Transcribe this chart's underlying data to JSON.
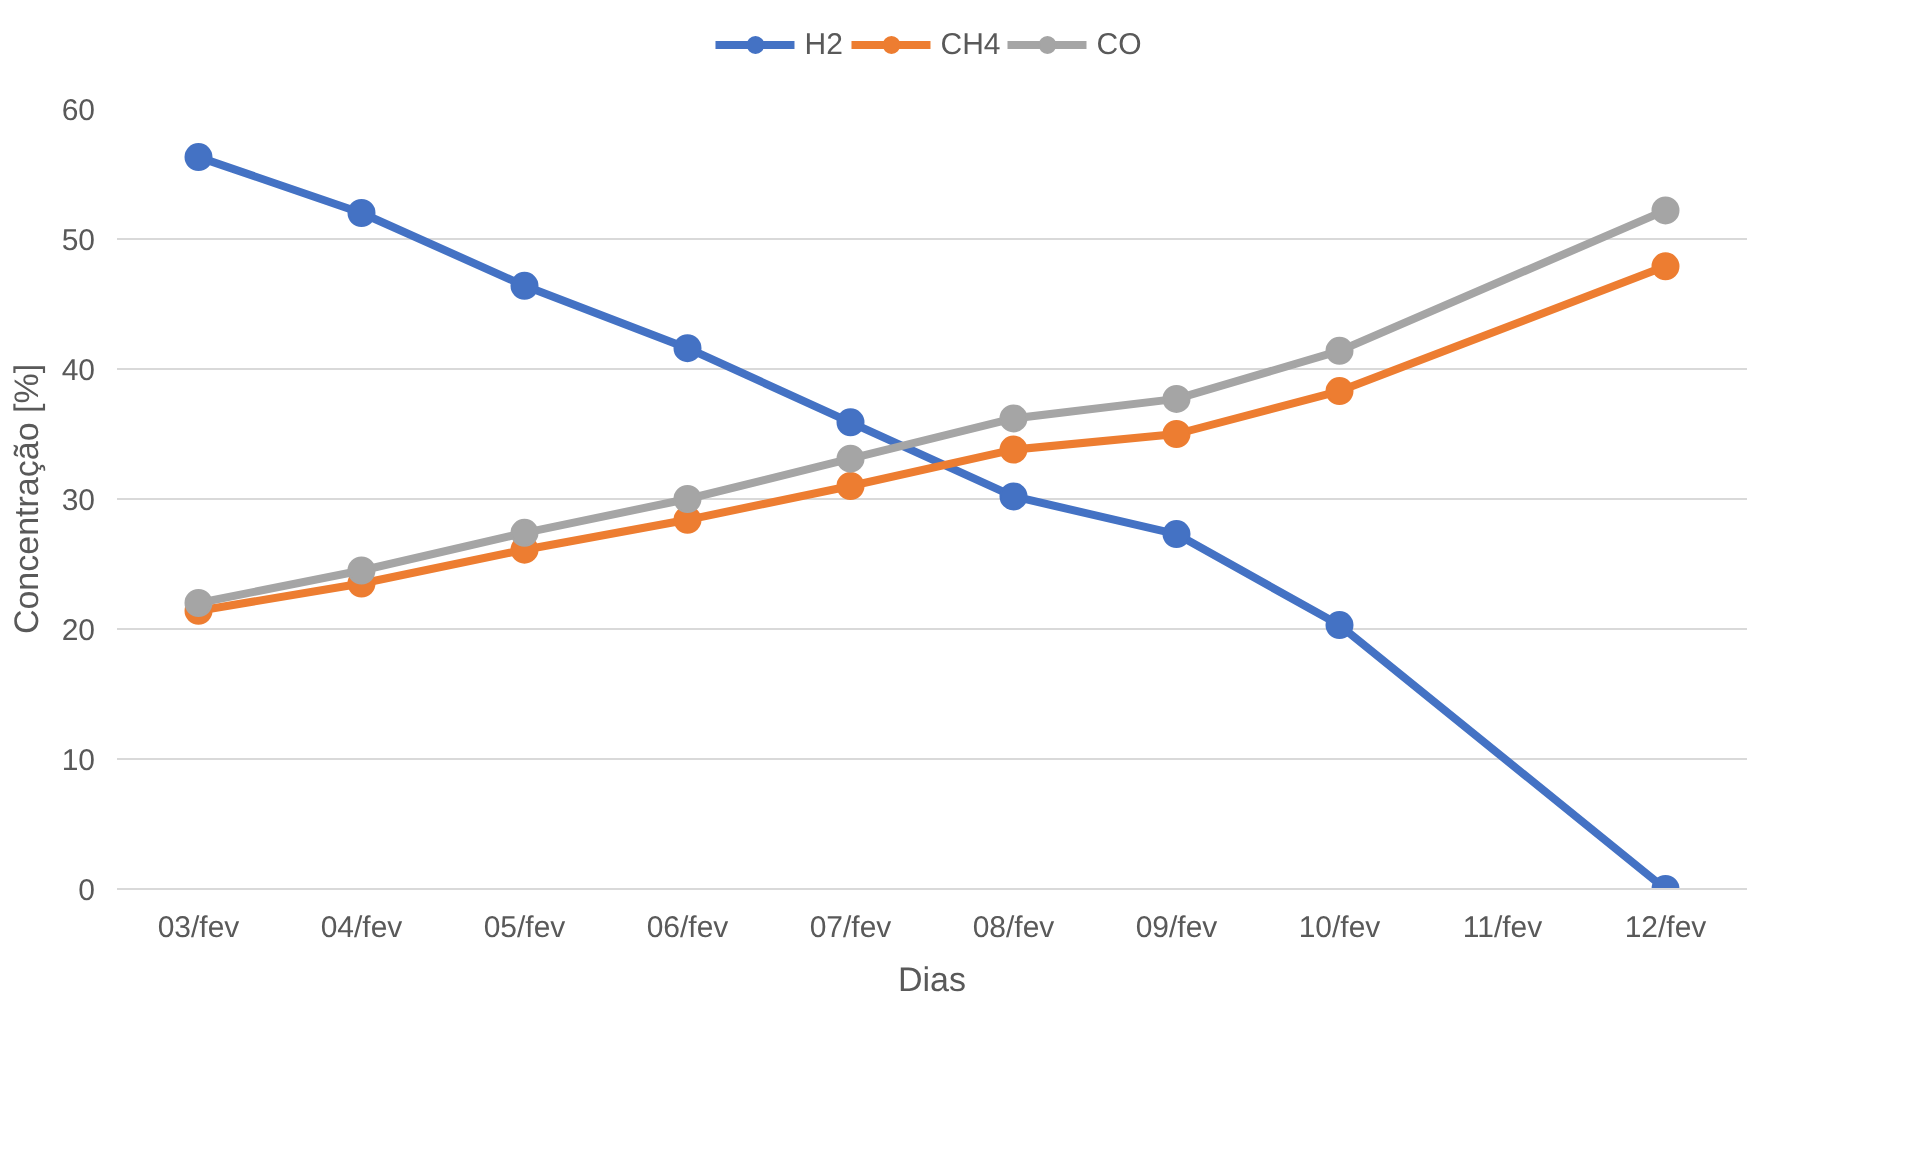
{
  "chart_data": {
    "type": "line",
    "xlabel": "Dias",
    "ylabel": "Concentração [%]",
    "categories": [
      "03/fev",
      "04/fev",
      "05/fev",
      "06/fev",
      "07/fev",
      "08/fev",
      "09/fev",
      "10/fev",
      "11/fev",
      "12/fev"
    ],
    "series": [
      {
        "name": "H2",
        "color": "#4472c4",
        "values": [
          56.3,
          52.0,
          46.4,
          41.6,
          35.9,
          30.2,
          27.3,
          20.3,
          null,
          0
        ]
      },
      {
        "name": "CH4",
        "color": "#ed7d31",
        "values": [
          21.4,
          23.5,
          26.1,
          28.4,
          31.0,
          33.8,
          35.0,
          38.3,
          null,
          47.9
        ]
      },
      {
        "name": "CO",
        "color": "#a5a5a5",
        "values": [
          22.0,
          24.5,
          27.4,
          30.0,
          33.1,
          36.2,
          37.7,
          41.4,
          null,
          52.2
        ]
      }
    ],
    "ylim": [
      0,
      60
    ],
    "yticks": [
      0,
      10,
      20,
      30,
      40,
      50,
      60
    ],
    "grid": "y",
    "legend": "top",
    "marker": "circle",
    "line_style": "solid"
  }
}
